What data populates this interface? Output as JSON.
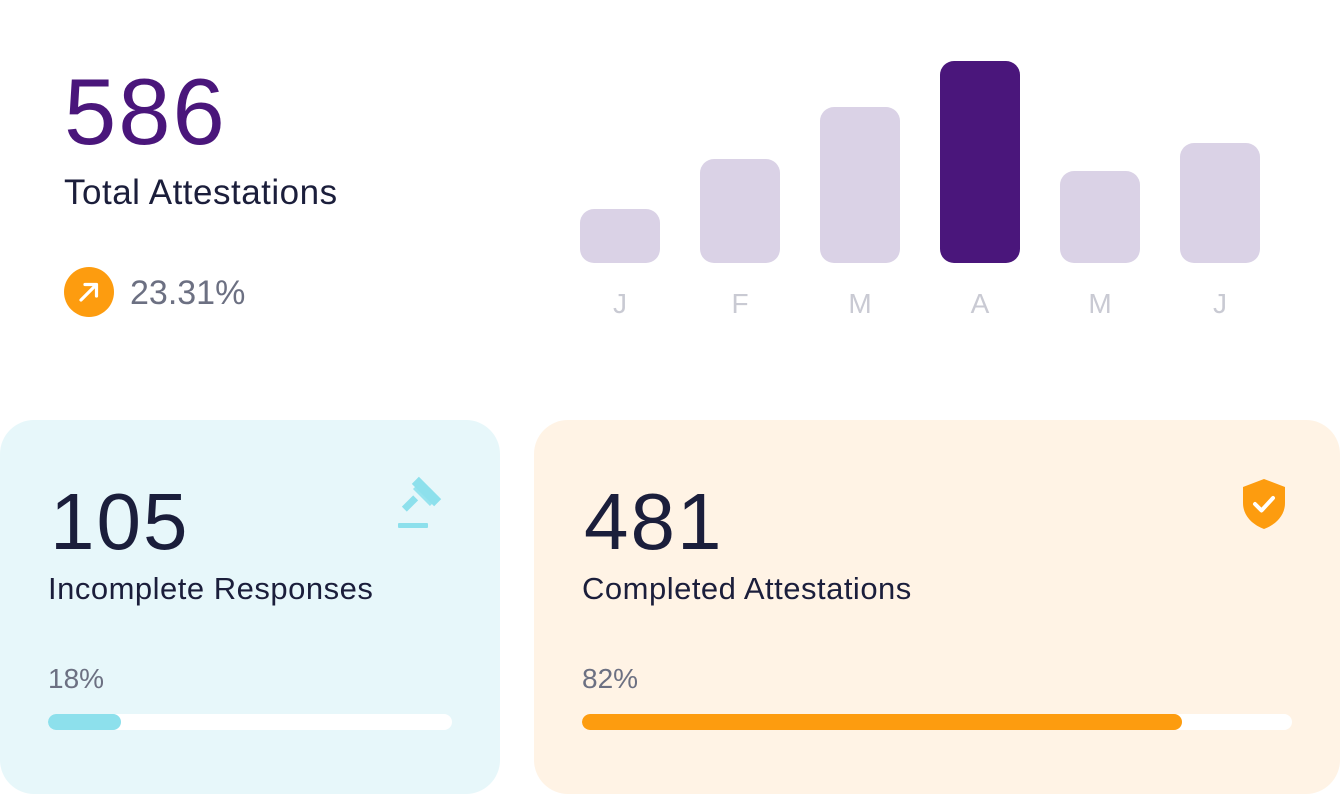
{
  "total": {
    "value": "586",
    "label": "Total Attestations",
    "trend": {
      "icon": "arrow-up-right-icon",
      "value": "23.31%"
    }
  },
  "chart_data": {
    "type": "bar",
    "categories": [
      "J",
      "F",
      "M",
      "A",
      "M",
      "J"
    ],
    "values": [
      54,
      104,
      156,
      202,
      92,
      120
    ],
    "highlight_index": 3,
    "xlabel": "",
    "ylabel": "",
    "grid": false
  },
  "incomplete": {
    "value": "105",
    "label": "Incomplete Responses",
    "percent_label": "18%",
    "progress": 0.18,
    "icon": "gavel-icon"
  },
  "completed": {
    "value": "481",
    "label": "Completed Attestations",
    "percent_label": "82%",
    "progress": 0.82,
    "icon": "shield-check-icon"
  },
  "colors": {
    "brand_purple": "#4a167b",
    "bar_muted": "#dad2e6",
    "accent_orange": "#fd9c0f",
    "accent_cyan": "#8de0ec",
    "incomplete_bg": "#e7f7fa",
    "completed_bg": "#fff3e5"
  }
}
